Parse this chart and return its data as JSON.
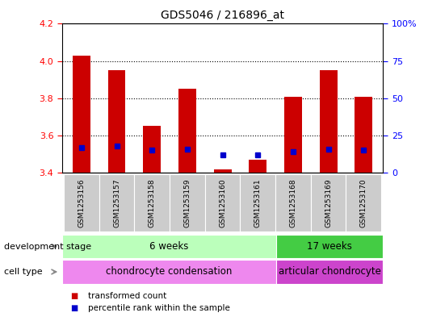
{
  "title": "GDS5046 / 216896_at",
  "samples": [
    "GSM1253156",
    "GSM1253157",
    "GSM1253158",
    "GSM1253159",
    "GSM1253160",
    "GSM1253161",
    "GSM1253168",
    "GSM1253169",
    "GSM1253170"
  ],
  "transformed_count": [
    4.03,
    3.95,
    3.65,
    3.85,
    3.42,
    3.47,
    3.81,
    3.95,
    3.81
  ],
  "percentile_rank": [
    17,
    18,
    15,
    16,
    12,
    12,
    14,
    16,
    15
  ],
  "baseline": 3.4,
  "ylim_left": [
    3.4,
    4.2
  ],
  "ylim_right": [
    0,
    100
  ],
  "yticks_left": [
    3.4,
    3.6,
    3.8,
    4.0,
    4.2
  ],
  "yticks_right": [
    0,
    25,
    50,
    75,
    100
  ],
  "bar_color": "#cc0000",
  "percentile_color": "#0000cc",
  "bar_width": 0.5,
  "development_stage_groups": [
    {
      "label": "6 weeks",
      "start": 0,
      "end": 5,
      "color": "#bbffbb"
    },
    {
      "label": "17 weeks",
      "start": 6,
      "end": 8,
      "color": "#44cc44"
    }
  ],
  "cell_type_groups": [
    {
      "label": "chondrocyte condensation",
      "start": 0,
      "end": 5,
      "color": "#ee88ee"
    },
    {
      "label": "articular chondrocyte",
      "start": 6,
      "end": 8,
      "color": "#cc44cc"
    }
  ],
  "legend_items": [
    {
      "label": "transformed count",
      "color": "#cc0000"
    },
    {
      "label": "percentile rank within the sample",
      "color": "#0000cc"
    }
  ],
  "dev_stage_label": "development stage",
  "cell_type_label": "cell type",
  "sample_box_color": "#cccccc",
  "arrow_color": "#888888"
}
